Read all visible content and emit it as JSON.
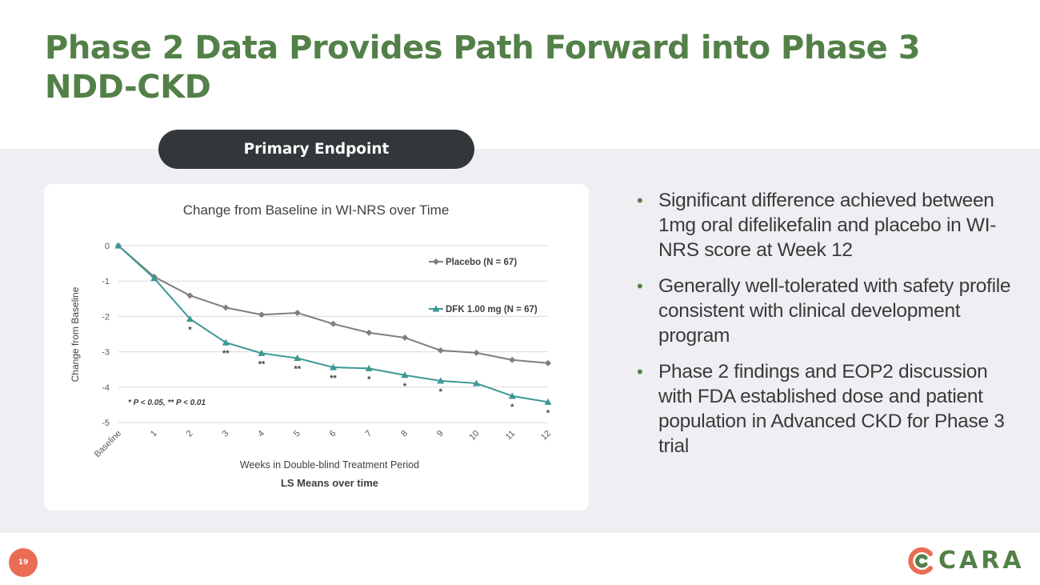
{
  "slide": {
    "title_line1": "Phase 2 Data Provides Path Forward into Phase 3",
    "title_line2": "NDD-CKD",
    "section_label": "Primary Endpoint",
    "page_number": "19",
    "logo_text": "CARA"
  },
  "bullets": [
    "Significant difference achieved between 1mg oral difelikefalin and placebo in WI-NRS score at Week 12",
    "Generally well-tolerated with safety profile consistent with clinical development program",
    "Phase 2 findings and EOP2 discussion with FDA established dose and patient population in Advanced CKD for Phase 3 trial"
  ],
  "colors": {
    "title_green": "#538048",
    "placebo": "#7f7f7f",
    "dfk": "#3b9893",
    "pill_bg": "#32373a",
    "page_badge": "#e96d53",
    "logo_orange": "#e96d53",
    "logo_green": "#538048"
  },
  "chart_data": {
    "type": "line",
    "title": "Change from Baseline in WI-NRS over Time",
    "xlabel": "Weeks in Double-blind Treatment Period",
    "subtitle": "LS Means over time",
    "ylabel": "Change from Baseline",
    "ylim": [
      -5,
      0
    ],
    "yticks": [
      0,
      -1,
      -2,
      -3,
      -4,
      -5
    ],
    "categories": [
      "Baseline",
      "1",
      "2",
      "3",
      "4",
      "5",
      "6",
      "7",
      "8",
      "9",
      "10",
      "11",
      "12"
    ],
    "series": [
      {
        "name": "Placebo (N = 67)",
        "marker": "diamond",
        "values": [
          0,
          -0.88,
          -1.41,
          -1.75,
          -1.95,
          -1.9,
          -2.21,
          -2.46,
          -2.6,
          -2.96,
          -3.03,
          -3.23,
          -3.32
        ]
      },
      {
        "name": "DFK 1.00 mg (N = 67)",
        "marker": "triangle",
        "values": [
          0,
          -0.92,
          -2.07,
          -2.74,
          -3.04,
          -3.18,
          -3.44,
          -3.47,
          -3.66,
          -3.82,
          -3.89,
          -4.25,
          -4.42
        ]
      }
    ],
    "significance": [
      "",
      "",
      "*",
      "**",
      "**",
      "**",
      "**",
      "*",
      "*",
      "*",
      "",
      "*",
      "*"
    ],
    "footnote": "* P < 0.05, ** P < 0.01",
    "grid": true,
    "legend_position": "top-right"
  }
}
